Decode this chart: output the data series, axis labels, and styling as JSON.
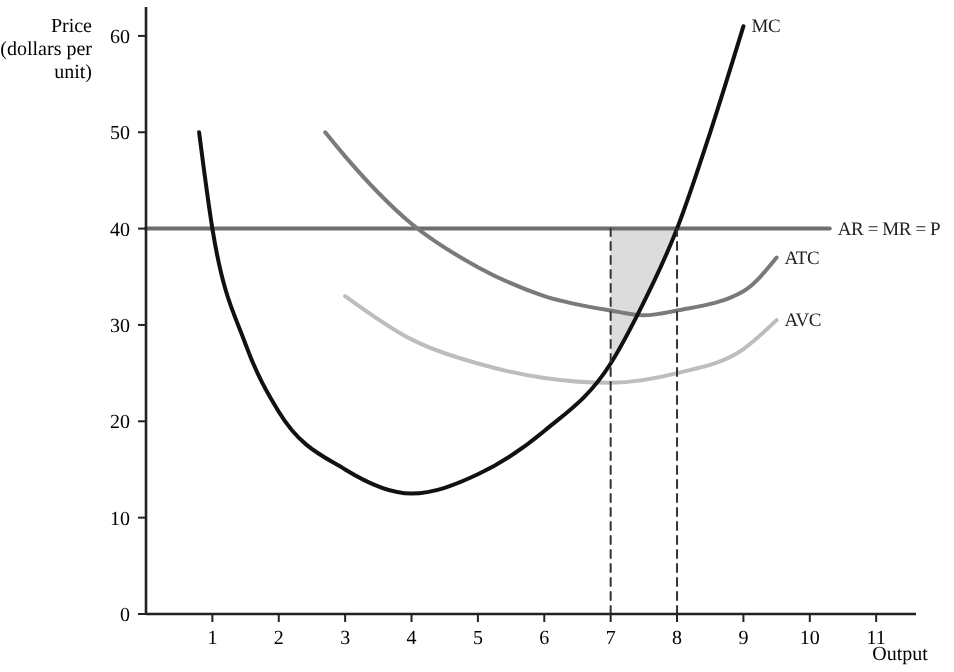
{
  "chart_data": {
    "type": "line",
    "xlabel": "Output",
    "ylabel": "Price (dollars per unit)",
    "xlim": [
      0,
      11.6
    ],
    "ylim": [
      0,
      63
    ],
    "xticks": [
      1,
      2,
      3,
      4,
      5,
      6,
      7,
      8,
      9,
      10,
      11
    ],
    "yticks": [
      0,
      10,
      20,
      30,
      40,
      50,
      60
    ],
    "grid": false,
    "marker": "none",
    "series": [
      {
        "name": "AR = MR = P",
        "color": "#6e6e6e",
        "x": [
          0,
          10.3
        ],
        "values": [
          40,
          40
        ]
      },
      {
        "name": "ATC",
        "color": "#7a7a7a",
        "x": [
          2.7,
          3,
          4,
          5,
          6,
          7,
          7.5,
          8,
          9,
          9.5
        ],
        "values": [
          50,
          47.5,
          40.5,
          36,
          33,
          31.5,
          31,
          31.5,
          33.5,
          37
        ]
      },
      {
        "name": "AVC",
        "color": "#bdbdbd",
        "x": [
          3,
          4,
          5,
          6,
          7,
          8,
          9,
          9.5
        ],
        "values": [
          33,
          28.5,
          26,
          24.5,
          24,
          25,
          27.5,
          30.5
        ]
      },
      {
        "name": "MC",
        "color": "#111111",
        "x": [
          0.8,
          1,
          1.5,
          2,
          3,
          4,
          5,
          6,
          7,
          7.4,
          8,
          8.5,
          9
        ],
        "values": [
          50,
          40,
          28,
          21,
          15,
          12.5,
          14.5,
          19,
          26,
          31,
          40,
          50,
          61
        ]
      },
      {
        "color": "#333333",
        "line_style": "dashed",
        "x": [
          7,
          7
        ],
        "values": [
          0,
          40
        ]
      },
      {
        "color": "#333333",
        "line_style": "dashed",
        "x": [
          8,
          8
        ],
        "values": [
          0,
          40
        ]
      }
    ]
  }
}
